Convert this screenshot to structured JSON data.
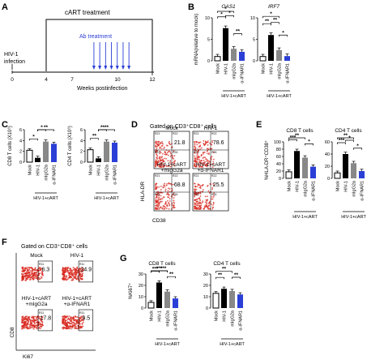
{
  "panels": {
    "A": {
      "letter": "A",
      "infection_label_1": "HIV-1",
      "infection_label_2": "infection",
      "cart_label": "cART treatment",
      "ab_label": "Ab treatment",
      "axis_label": "Weeks postinfection",
      "ticks": [
        "0",
        "4",
        "7",
        "10",
        "12"
      ],
      "arrow_weeks": [
        7,
        7.5,
        8,
        8.5,
        9,
        9.5,
        10
      ],
      "colors": {
        "cart": "#000000",
        "ab": "#2b3fd6"
      }
    },
    "D": {
      "letter": "D",
      "title": "Gated on CD3⁺CD8⁺ cells",
      "plots": [
        {
          "label": "Mock",
          "value": "21.8"
        },
        {
          "label": "HIV-1",
          "value": "78.6"
        },
        {
          "label": "HIV-1+cART\n+mIgG2a",
          "label_1": "HIV-1+cART",
          "label_2": "+mIgG2a",
          "value": "68.8"
        },
        {
          "label": "HIV-1+cART\n+α-IFNAR1",
          "label_1": "HIV-1+cART",
          "label_2": "+α-IFNAR1",
          "value": "25.5"
        }
      ],
      "quadrants": [
        "R21",
        "R22",
        "R23",
        "R24"
      ],
      "y_axis": "HLA-DR",
      "x_axis": "CD38"
    },
    "F": {
      "letter": "F",
      "title": "Gated on CD3⁺CD8⁺ cells",
      "plots": [
        {
          "label_1": "Mock",
          "label_2": "",
          "value": "6.3"
        },
        {
          "label_1": "HIV-1",
          "label_2": "",
          "value": "24.9"
        },
        {
          "label_1": "HIV-1+cART",
          "label_2": "+mIgG2a",
          "value": "17.8"
        },
        {
          "label_1": "HIV-1+cART",
          "label_2": "+α-IFNAR1",
          "value": "9.5"
        }
      ],
      "gate_label": "R11",
      "y_axis": "CD8",
      "x_axis": "Ki67"
    },
    "group_label": "HIV-1+cART"
  },
  "chart_data": [
    {
      "panel": "B",
      "type": "bar",
      "title": "OAS1",
      "categories": [
        "Mock",
        "HIV-1",
        "mIgG2a",
        "α-IFNAR1"
      ],
      "values": [
        1,
        7.6,
        2.8,
        2.1
      ],
      "ylabel": "mRNA(relative to mock)",
      "ylim": [
        0,
        10
      ],
      "ticks": [
        0,
        5,
        10
      ],
      "group_label": "HIV-1+cART",
      "group_start": 2,
      "colors": [
        "#ffffff",
        "#000000",
        "#888888",
        "#2b3fd6"
      ],
      "significance": [
        {
          "from": 0,
          "to": 1,
          "label": "*"
        },
        {
          "from": 1,
          "to": 2,
          "label": "*"
        },
        {
          "from": 0,
          "to": 2,
          "label": "*"
        },
        {
          "from": 2,
          "to": 3,
          "label": "**"
        }
      ]
    },
    {
      "panel": "B",
      "type": "bar",
      "title": "IRF7",
      "categories": [
        "Mock",
        "HIV-1",
        "mIgG2a",
        "α-IFNAR1"
      ],
      "values": [
        1,
        6,
        2.5,
        1.1
      ],
      "ylabel": "",
      "ylim": [
        0,
        10
      ],
      "ticks": [
        0,
        5,
        10
      ],
      "group_label": "HIV-1+cART",
      "group_start": 2,
      "colors": [
        "#ffffff",
        "#000000",
        "#888888",
        "#2b3fd6"
      ],
      "significance": [
        {
          "from": 0,
          "to": 1,
          "label": "**"
        },
        {
          "from": 1,
          "to": 2,
          "label": "**"
        },
        {
          "from": 0,
          "to": 2,
          "label": "*"
        },
        {
          "from": 2,
          "to": 3,
          "label": "*"
        }
      ]
    },
    {
      "panel": "C",
      "type": "bar",
      "title": "",
      "categories": [
        "Mock",
        "HIV-1",
        "mIgG2a",
        "α-IFNAR1"
      ],
      "values": [
        2.2,
        0.8,
        3.8,
        3.4
      ],
      "ylabel": "CD8 T cells (X10⁶)",
      "ylim": [
        0,
        6
      ],
      "ticks": [
        0,
        2,
        4,
        6
      ],
      "group_label": "HIV-1+cART",
      "group_start": 2,
      "colors": [
        "#ffffff",
        "#000000",
        "#888888",
        "#2b3fd6"
      ],
      "significance": [
        {
          "from": 0,
          "to": 1,
          "label": "*"
        },
        {
          "from": 1,
          "to": 2,
          "label": "*"
        },
        {
          "from": 1,
          "to": 3,
          "label": "**"
        }
      ]
    },
    {
      "panel": "C",
      "type": "bar",
      "title": "",
      "categories": [
        "Mock",
        "HIV-1",
        "mIgG2a",
        "α-IFNAR1"
      ],
      "values": [
        2.3,
        0.7,
        3.8,
        3.6
      ],
      "ylabel": "CD4 T cells (X10⁶)",
      "ylim": [
        0,
        6
      ],
      "ticks": [
        0,
        2,
        4,
        6
      ],
      "group_label": "HIV-1+cART",
      "group_start": 2,
      "colors": [
        "#ffffff",
        "#000000",
        "#888888",
        "#2b3fd6"
      ],
      "significance": [
        {
          "from": 0,
          "to": 1,
          "label": "**"
        },
        {
          "from": 1,
          "to": 2,
          "label": "**"
        },
        {
          "from": 1,
          "to": 3,
          "label": "**"
        }
      ]
    },
    {
      "panel": "E",
      "type": "bar",
      "title": "CD8 T cells",
      "categories": [
        "Mock",
        "HIV-1",
        "mIgG2a",
        "α-IFNAR1"
      ],
      "values": [
        18,
        75,
        57,
        32
      ],
      "ylabel": "%HLA-DR⁺CD38⁺",
      "ylim": [
        0,
        100
      ],
      "ticks": [
        0,
        20,
        40,
        60,
        80,
        100
      ],
      "group_label": "HIV-1+cART",
      "group_start": 2,
      "colors": [
        "#ffffff",
        "#000000",
        "#888888",
        "#2b3fd6"
      ],
      "significance": [
        {
          "from": 0,
          "to": 1,
          "label": "***"
        },
        {
          "from": 0,
          "to": 2,
          "label": "**"
        },
        {
          "from": 2,
          "to": 3,
          "label": "*"
        }
      ]
    },
    {
      "panel": "E",
      "type": "bar",
      "title": "CD4 T cells",
      "categories": [
        "Mock",
        "HIV-1",
        "mIgG2a",
        "α-IFNAR1"
      ],
      "values": [
        9,
        40,
        25,
        12
      ],
      "ylabel": "",
      "ylim": [
        0,
        60
      ],
      "ticks": [
        0,
        20,
        40,
        60
      ],
      "group_label": "HIV-1+cART",
      "group_start": 2,
      "colors": [
        "#ffffff",
        "#000000",
        "#888888",
        "#2b3fd6"
      ],
      "significance": [
        {
          "from": 0,
          "to": 1,
          "label": "***"
        },
        {
          "from": 0,
          "to": 2,
          "label": "**"
        },
        {
          "from": 1,
          "to": 2,
          "label": "*"
        },
        {
          "from": 2,
          "to": 3,
          "label": "*"
        }
      ]
    },
    {
      "panel": "G",
      "type": "bar",
      "title": "CD8 T cells",
      "categories": [
        "Mock",
        "HIV-1",
        "mIgG2a",
        "α-IFNAR1"
      ],
      "values": [
        5,
        22.5,
        14.5,
        8.5
      ],
      "ylabel": "%Ki67⁺",
      "ylim": [
        0,
        30
      ],
      "ticks": [
        0,
        10,
        20,
        30
      ],
      "group_label": "HIV-1+cART",
      "group_start": 2,
      "colors": [
        "#ffffff",
        "#000000",
        "#888888",
        "#2b3fd6"
      ],
      "significance": [
        {
          "from": 0,
          "to": 1,
          "label": "***"
        },
        {
          "from": 0,
          "to": 2,
          "label": "***"
        },
        {
          "from": 1,
          "to": 2,
          "label": "***"
        },
        {
          "from": 2,
          "to": 3,
          "label": "**"
        }
      ]
    },
    {
      "panel": "G",
      "type": "bar",
      "title": "CD4 T cells",
      "categories": [
        "Mock",
        "HIV-1",
        "mIgG2a",
        "α-IFNAR1"
      ],
      "values": [
        13,
        17,
        15,
        12
      ],
      "ylabel": "",
      "ylim": [
        0,
        30
      ],
      "ticks": [
        0,
        10,
        20,
        30
      ],
      "group_label": "HIV-1+cART",
      "group_start": 2,
      "colors": [
        "#ffffff",
        "#000000",
        "#888888",
        "#2b3fd6"
      ],
      "significance": [
        {
          "from": 0,
          "to": 1,
          "label": "**"
        },
        {
          "from": 0,
          "to": 2,
          "label": "**"
        },
        {
          "from": 2,
          "to": 3,
          "label": "**"
        }
      ]
    }
  ]
}
